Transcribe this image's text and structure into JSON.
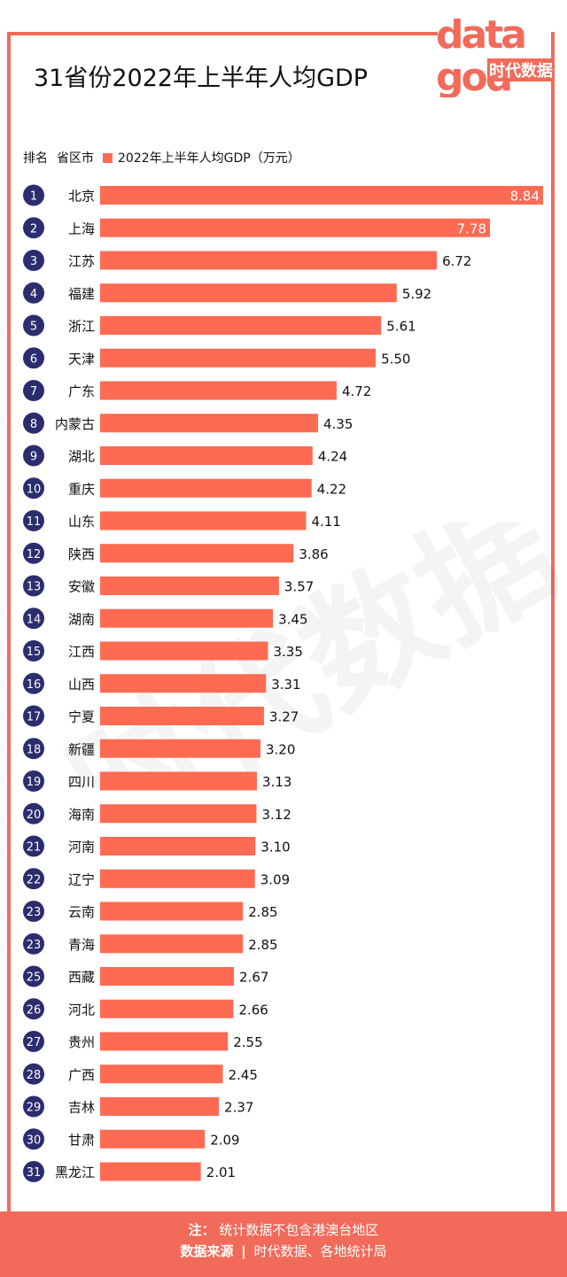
{
  "title": "31省份2022年上半年人均GDP",
  "logo": {
    "top": "data",
    "bottom": "god",
    "name": "时代数据"
  },
  "header": {
    "rank_label": "排名",
    "region_label": "省区市",
    "legend_label": "2022年上半年人均GDP（万元）"
  },
  "colors": {
    "bar": "#ff6a53",
    "badge": "#2b2d6e",
    "frame": "#f26a5a"
  },
  "chart_data": {
    "type": "bar",
    "orientation": "horizontal",
    "series_name": "2022年上半年人均GDP（万元）",
    "ranks": [
      "1",
      "2",
      "3",
      "4",
      "5",
      "6",
      "7",
      "8",
      "9",
      "10",
      "11",
      "12",
      "13",
      "14",
      "15",
      "16",
      "17",
      "18",
      "19",
      "20",
      "21",
      "22",
      "23",
      "23",
      "25",
      "26",
      "27",
      "28",
      "29",
      "30",
      "31"
    ],
    "categories": [
      "北京",
      "上海",
      "江苏",
      "福建",
      "浙江",
      "天津",
      "广东",
      "内蒙古",
      "湖北",
      "重庆",
      "山东",
      "陕西",
      "安徽",
      "湖南",
      "江西",
      "山西",
      "宁夏",
      "新疆",
      "四川",
      "海南",
      "河南",
      "辽宁",
      "云南",
      "青海",
      "西藏",
      "河北",
      "贵州",
      "广西",
      "吉林",
      "甘肃",
      "黑龙江"
    ],
    "values": [
      8.84,
      7.78,
      6.72,
      5.92,
      5.61,
      5.5,
      4.72,
      4.35,
      4.24,
      4.22,
      4.11,
      3.86,
      3.57,
      3.45,
      3.35,
      3.31,
      3.27,
      3.2,
      3.13,
      3.12,
      3.1,
      3.09,
      2.85,
      2.85,
      2.67,
      2.66,
      2.55,
      2.45,
      2.37,
      2.09,
      2.01
    ],
    "labels": [
      "8.84",
      "7.78",
      "6.72",
      "5.92",
      "5.61",
      "5.50",
      "4.72",
      "4.35",
      "4.24",
      "4.22",
      "4.11",
      "3.86",
      "3.57",
      "3.45",
      "3.35",
      "3.31",
      "3.27",
      "3.20",
      "3.13",
      "3.12",
      "3.10",
      "3.09",
      "2.85",
      "2.85",
      "2.67",
      "2.66",
      "2.55",
      "2.45",
      "2.37",
      "2.09",
      "2.01"
    ],
    "xlim": [
      0,
      8.84
    ]
  },
  "footer": {
    "note_label": "注：",
    "note_text": "统计数据不包含港澳台地区",
    "source_label": "数据来源",
    "separator": "|",
    "source_text": "时代数据、各地统计局"
  },
  "watermark": "时代数据"
}
